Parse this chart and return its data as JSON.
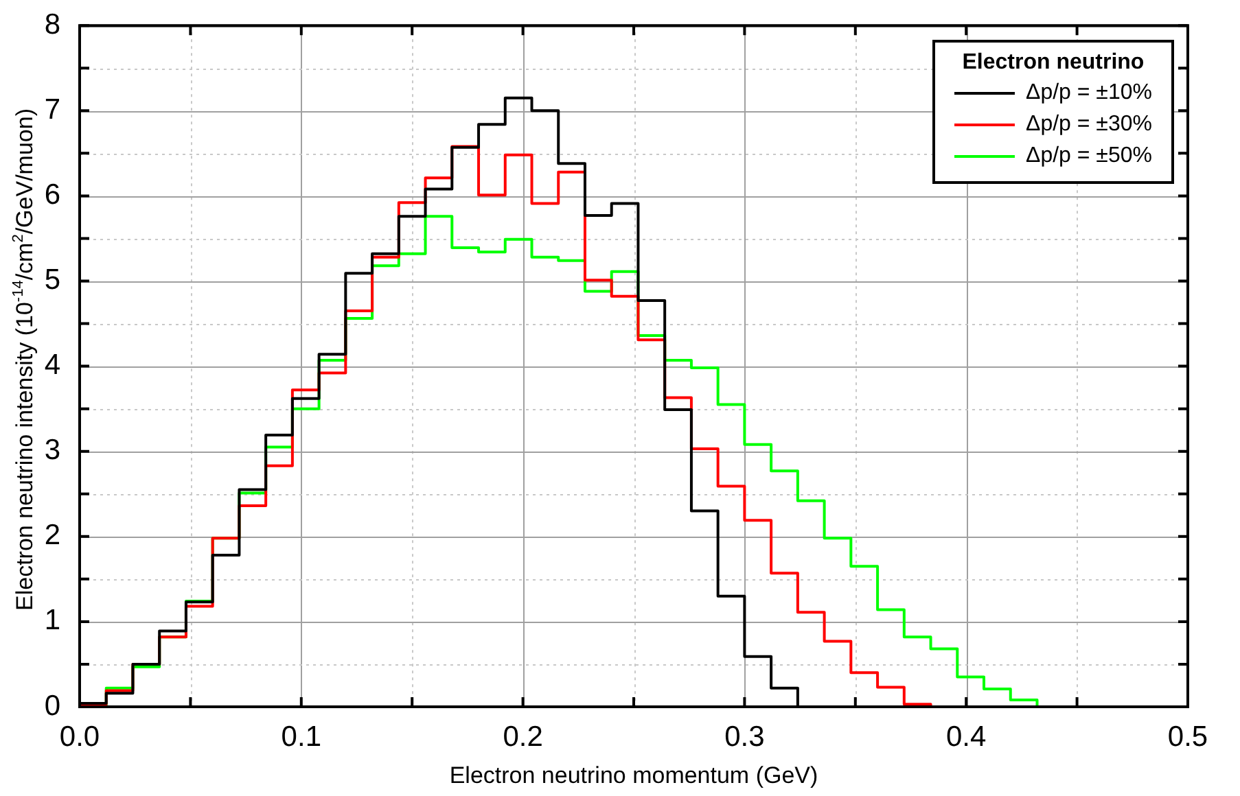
{
  "chart_data": {
    "type": "histogram",
    "xlabel": "Electron neutrino momentum (GeV)",
    "ylabel": "Electron neutrino intensity (10$^{-14}$/cm$^{2}$/GeV/muon)",
    "legend_title": "Electron neutrino",
    "legend": "top right",
    "grid": true,
    "line_style": "solid",
    "bins": [
      0,
      0.012,
      0.024,
      0.036,
      0.048,
      0.06,
      0.072,
      0.084,
      0.096,
      0.108,
      0.12,
      0.132,
      0.144,
      0.156,
      0.168,
      0.18,
      0.192,
      0.204,
      0.216,
      0.228,
      0.24,
      0.252,
      0.264,
      0.276,
      0.288,
      0.3,
      0.312,
      0.324,
      0.336,
      0.348,
      0.36,
      0.372,
      0.384,
      0.396,
      0.408,
      0.42,
      0.432,
      0.444,
      0.456,
      0.468,
      0.48,
      0.492,
      0.5
    ],
    "xlim": [
      0,
      0.5
    ],
    "xticks": [
      {
        "value": 0,
        "label": "0.0"
      },
      {
        "value": 0.05,
        "label": null
      },
      {
        "value": 0.1,
        "label": "0.1"
      },
      {
        "value": 0.15,
        "label": null
      },
      {
        "value": 0.2,
        "label": "0.2"
      },
      {
        "value": 0.25,
        "label": null
      },
      {
        "value": 0.3,
        "label": "0.3"
      },
      {
        "value": 0.35,
        "label": null
      },
      {
        "value": 0.4,
        "label": "0.4"
      },
      {
        "value": 0.45,
        "label": null
      },
      {
        "value": 0.5,
        "label": "0.5"
      }
    ],
    "ylim": [
      0,
      8
    ],
    "yticks": [
      0,
      {
        "value": 0.5,
        "label": null
      },
      1,
      {
        "value": 1.5,
        "label": null
      },
      2,
      {
        "value": 2.5,
        "label": null
      },
      3,
      {
        "value": 3.5,
        "label": null
      },
      4,
      {
        "value": 4.5,
        "label": null
      },
      5,
      {
        "value": 5.5,
        "label": null
      },
      6,
      {
        "value": 6.5,
        "label": null
      },
      7,
      {
        "value": 7.5,
        "label": null
      },
      8
    ],
    "series": [
      {
        "name": "Δp/p = ±10%",
        "color": "#000000",
        "values": [
          0.04,
          0.16,
          0.5,
          0.89,
          1.23,
          1.78,
          2.55,
          3.19,
          3.62,
          4.14,
          5.09,
          5.32,
          5.76,
          6.08,
          6.57,
          6.84,
          7.15,
          7.0,
          6.38,
          5.77,
          5.91,
          4.77,
          3.49,
          2.3,
          1.3,
          0.59,
          0.22,
          0,
          0,
          0,
          0,
          0,
          0,
          0,
          0,
          0,
          0,
          0,
          0,
          0,
          0,
          0
        ]
      },
      {
        "name": "Δp/p = ±30%",
        "color": "#ff0000",
        "values": [
          0.03,
          0.19,
          0.5,
          0.82,
          1.18,
          1.98,
          2.36,
          2.83,
          3.72,
          3.92,
          4.65,
          5.28,
          5.92,
          6.21,
          6.58,
          6.01,
          6.48,
          5.91,
          6.28,
          5.01,
          4.82,
          4.31,
          3.63,
          3.03,
          2.59,
          2.19,
          1.57,
          1.11,
          0.77,
          0.4,
          0.23,
          0.03,
          0,
          0,
          0,
          0,
          0,
          0,
          0,
          0,
          0,
          0
        ]
      },
      {
        "name": "Δp/p = ±50%",
        "color": "#00ff00",
        "values": [
          0.02,
          0.22,
          0.47,
          0.82,
          1.24,
          1.98,
          2.51,
          3.05,
          3.5,
          4.07,
          4.56,
          5.18,
          5.32,
          5.76,
          5.39,
          5.34,
          5.49,
          5.28,
          5.24,
          4.88,
          5.11,
          4.36,
          4.07,
          3.98,
          3.55,
          3.08,
          2.77,
          2.42,
          1.98,
          1.65,
          1.14,
          0.82,
          0.68,
          0.35,
          0.21,
          0.08,
          0,
          0,
          0,
          0,
          0,
          0
        ]
      }
    ]
  }
}
